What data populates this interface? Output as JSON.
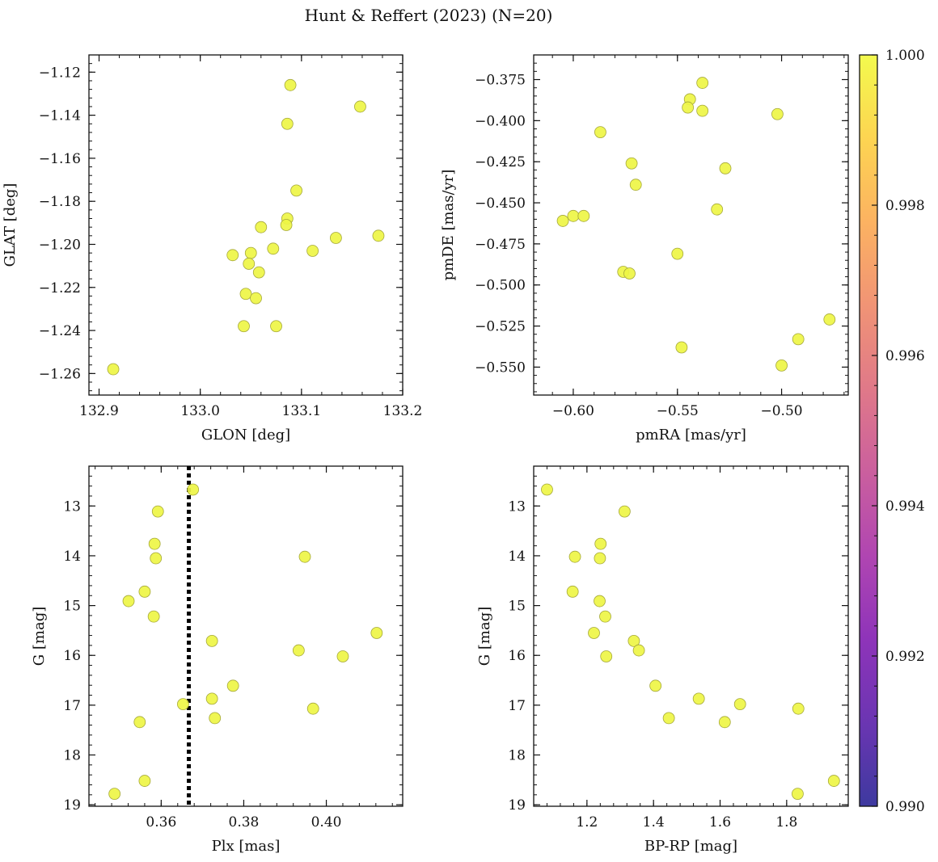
{
  "figure_title": "Hunt & Reffert (2023) (N=20)",
  "colors": {
    "point_fill": "#eef545",
    "point_stroke": "#a5a83a",
    "frame": "#111111",
    "vline": "#000000",
    "colormap": [
      "#0d0887",
      "#46039f",
      "#7201a8",
      "#9c179e",
      "#bd3786",
      "#d8576b",
      "#ed7953",
      "#fb9f3a",
      "#fdca26",
      "#f0f921"
    ]
  },
  "colorbar": {
    "min": 0.99,
    "max": 1.0,
    "ticks": [
      "0.990",
      "0.992",
      "0.994",
      "0.996",
      "0.998",
      "1.000"
    ]
  },
  "chart_data": [
    {
      "id": "glon_glat",
      "type": "scatter",
      "title": "",
      "xlabel": "GLON [deg]",
      "ylabel": "GLAT [deg]",
      "xlim": [
        132.89,
        133.2
      ],
      "ylim": [
        -1.27,
        -1.112
      ],
      "y_inverted": false,
      "xticks": [
        132.9,
        133.0,
        133.1,
        133.2
      ],
      "xtick_labels": [
        "132.9",
        "133.0",
        "133.1",
        "133.2"
      ],
      "yticks": [
        -1.26,
        -1.24,
        -1.22,
        -1.2,
        -1.18,
        -1.16,
        -1.14,
        -1.12
      ],
      "ytick_labels": [
        "−1.26",
        "−1.24",
        "−1.22",
        "−1.20",
        "−1.18",
        "−1.16",
        "−1.14",
        "−1.12"
      ],
      "points": [
        [
          132.914,
          -1.258
        ],
        [
          133.089,
          -1.126
        ],
        [
          133.158,
          -1.136
        ],
        [
          133.086,
          -1.144
        ],
        [
          133.095,
          -1.175
        ],
        [
          133.086,
          -1.188
        ],
        [
          133.085,
          -1.191
        ],
        [
          133.06,
          -1.192
        ],
        [
          133.134,
          -1.197
        ],
        [
          133.176,
          -1.196
        ],
        [
          133.111,
          -1.203
        ],
        [
          133.072,
          -1.202
        ],
        [
          133.05,
          -1.204
        ],
        [
          133.032,
          -1.205
        ],
        [
          133.048,
          -1.209
        ],
        [
          133.058,
          -1.213
        ],
        [
          133.045,
          -1.223
        ],
        [
          133.055,
          -1.225
        ],
        [
          133.043,
          -1.238
        ],
        [
          133.075,
          -1.238
        ]
      ]
    },
    {
      "id": "pmra_pmde",
      "type": "scatter",
      "title": "",
      "xlabel": "pmRA [mas/yr]",
      "ylabel": "pmDE [mas/yr]",
      "xlim": [
        -0.619,
        -0.468
      ],
      "ylim": [
        -0.567,
        -0.36
      ],
      "y_inverted": false,
      "xticks": [
        -0.6,
        -0.55,
        -0.5
      ],
      "xtick_labels": [
        "−0.60",
        "−0.55",
        "−0.50"
      ],
      "yticks": [
        -0.55,
        -0.525,
        -0.5,
        -0.475,
        -0.45,
        -0.425,
        -0.4,
        -0.375
      ],
      "ytick_labels": [
        "−0.550",
        "−0.525",
        "−0.500",
        "−0.475",
        "−0.450",
        "−0.425",
        "−0.400",
        "−0.375"
      ],
      "points": [
        [
          -0.538,
          -0.377
        ],
        [
          -0.544,
          -0.387
        ],
        [
          -0.545,
          -0.392
        ],
        [
          -0.538,
          -0.394
        ],
        [
          -0.502,
          -0.396
        ],
        [
          -0.587,
          -0.407
        ],
        [
          -0.572,
          -0.426
        ],
        [
          -0.527,
          -0.429
        ],
        [
          -0.57,
          -0.439
        ],
        [
          -0.531,
          -0.454
        ],
        [
          -0.605,
          -0.461
        ],
        [
          -0.6,
          -0.458
        ],
        [
          -0.595,
          -0.458
        ],
        [
          -0.55,
          -0.481
        ],
        [
          -0.576,
          -0.492
        ],
        [
          -0.573,
          -0.493
        ],
        [
          -0.477,
          -0.521
        ],
        [
          -0.492,
          -0.533
        ],
        [
          -0.548,
          -0.538
        ],
        [
          -0.5,
          -0.549
        ]
      ]
    },
    {
      "id": "plx_g",
      "type": "scatter",
      "title": "",
      "xlabel": "Plx [mas]",
      "ylabel": "G [mag]",
      "xlim": [
        0.3425,
        0.4185
      ],
      "ylim": [
        12.2,
        19.03
      ],
      "y_inverted": true,
      "xticks": [
        0.36,
        0.38,
        0.4
      ],
      "xtick_labels": [
        "0.36",
        "0.38",
        "0.40"
      ],
      "yticks": [
        13,
        14,
        15,
        16,
        17,
        18,
        19
      ],
      "ytick_labels": [
        "13",
        "14",
        "15",
        "16",
        "17",
        "18",
        "19"
      ],
      "vline": 0.3667,
      "points": [
        [
          0.3677,
          12.67
        ],
        [
          0.3592,
          13.11
        ],
        [
          0.3584,
          13.76
        ],
        [
          0.3587,
          14.05
        ],
        [
          0.3948,
          14.02
        ],
        [
          0.356,
          14.72
        ],
        [
          0.3521,
          14.91
        ],
        [
          0.3582,
          15.22
        ],
        [
          0.4122,
          15.55
        ],
        [
          0.3723,
          15.71
        ],
        [
          0.3933,
          15.9
        ],
        [
          0.404,
          16.02
        ],
        [
          0.3774,
          16.61
        ],
        [
          0.3723,
          16.87
        ],
        [
          0.3653,
          16.98
        ],
        [
          0.3968,
          17.07
        ],
        [
          0.373,
          17.26
        ],
        [
          0.3548,
          17.34
        ],
        [
          0.356,
          18.52
        ],
        [
          0.3487,
          18.78
        ]
      ]
    },
    {
      "id": "bprp_g",
      "type": "scatter",
      "title": "",
      "xlabel": "BP-RP [mag]",
      "ylabel": "G [mag]",
      "xlim": [
        1.04,
        1.985
      ],
      "ylim": [
        12.2,
        19.03
      ],
      "y_inverted": true,
      "xticks": [
        1.2,
        1.4,
        1.6,
        1.8
      ],
      "xtick_labels": [
        "1.2",
        "1.4",
        "1.6",
        "1.8"
      ],
      "yticks": [
        13,
        14,
        15,
        16,
        17,
        18,
        19
      ],
      "ytick_labels": [
        "13",
        "14",
        "15",
        "16",
        "17",
        "18",
        "19"
      ],
      "points": [
        [
          1.08,
          12.67
        ],
        [
          1.313,
          13.11
        ],
        [
          1.241,
          13.76
        ],
        [
          1.164,
          14.02
        ],
        [
          1.239,
          14.05
        ],
        [
          1.157,
          14.72
        ],
        [
          1.238,
          14.91
        ],
        [
          1.255,
          15.22
        ],
        [
          1.221,
          15.55
        ],
        [
          1.341,
          15.71
        ],
        [
          1.356,
          15.9
        ],
        [
          1.258,
          16.02
        ],
        [
          1.406,
          16.61
        ],
        [
          1.536,
          16.87
        ],
        [
          1.66,
          16.98
        ],
        [
          1.835,
          17.07
        ],
        [
          1.446,
          17.26
        ],
        [
          1.614,
          17.34
        ],
        [
          1.942,
          18.52
        ],
        [
          1.833,
          18.78
        ]
      ]
    }
  ]
}
